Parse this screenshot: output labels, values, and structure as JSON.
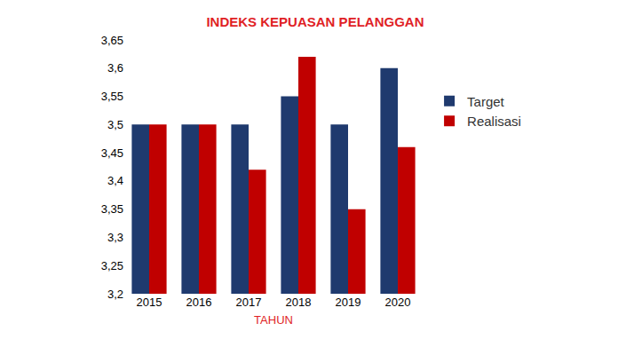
{
  "chart_data": {
    "type": "bar",
    "title": "INDEKS KEPUASAN PELANGGAN",
    "xlabel": "TAHUN",
    "categories": [
      "2015",
      "2016",
      "2017",
      "2018",
      "2019",
      "2020"
    ],
    "series": [
      {
        "name": "Target",
        "color": "#1f3a6e",
        "values": [
          3.5,
          3.5,
          3.5,
          3.55,
          3.5,
          3.6
        ]
      },
      {
        "name": "Realisasi",
        "color": "#c00000",
        "values": [
          3.5,
          3.5,
          3.42,
          3.62,
          3.35,
          3.46
        ]
      }
    ],
    "ylim": [
      3.2,
      3.65
    ],
    "yticks": [
      {
        "value": 3.2,
        "label": "3,2"
      },
      {
        "value": 3.25,
        "label": "3,25"
      },
      {
        "value": 3.3,
        "label": "3,3"
      },
      {
        "value": 3.35,
        "label": "3,35"
      },
      {
        "value": 3.4,
        "label": "3,4"
      },
      {
        "value": 3.45,
        "label": "3,45"
      },
      {
        "value": 3.5,
        "label": "3,5"
      },
      {
        "value": 3.55,
        "label": "3,55"
      },
      {
        "value": 3.6,
        "label": "3,6"
      },
      {
        "value": 3.65,
        "label": "3,65"
      }
    ],
    "grid": false,
    "legend": "right"
  }
}
